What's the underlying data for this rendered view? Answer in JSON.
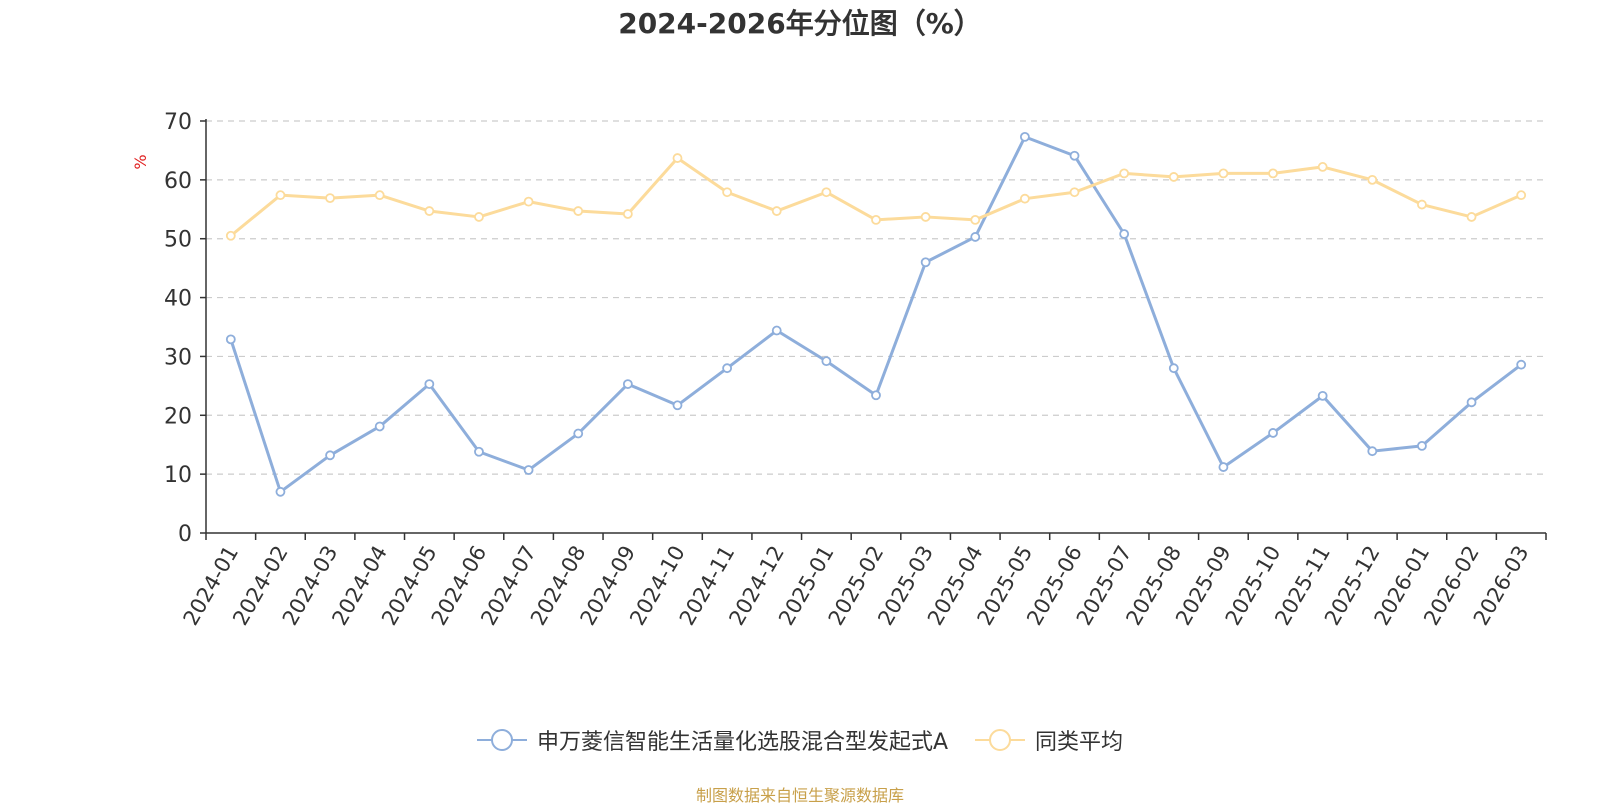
{
  "chart_data": {
    "type": "line",
    "title": "2024-2026年分位图（%）",
    "ylabel": "%",
    "ylim": [
      0,
      70
    ],
    "yticks": [
      "0",
      "10",
      "20",
      "30",
      "40",
      "50",
      "60",
      "70"
    ],
    "grid": true,
    "legend_position": "bottom",
    "categories": [
      "2024-01",
      "2024-02",
      "2024-03",
      "2024-04",
      "2024-05",
      "2024-06",
      "2024-07",
      "2024-08",
      "2024-09",
      "2024-10",
      "2024-11",
      "2024-12",
      "2025-01",
      "2025-02",
      "2025-03",
      "2025-04",
      "2025-05",
      "2025-06",
      "2025-07",
      "2025-08",
      "2025-09",
      "2025-10",
      "2025-11",
      "2025-12",
      "2026-01",
      "2026-02",
      "2026-03"
    ],
    "series": [
      {
        "name": "申万菱信智能生活量化选股混合型发起式A",
        "color": "#8eaedb",
        "values": [
          32.9,
          7.0,
          13.2,
          18.1,
          25.3,
          13.8,
          10.7,
          16.9,
          25.3,
          21.7,
          28.0,
          34.4,
          29.2,
          23.4,
          46.0,
          50.3,
          67.3,
          64.1,
          50.8,
          28.0,
          11.2,
          17.0,
          23.3,
          13.9,
          14.8,
          22.2,
          28.6
        ]
      },
      {
        "name": "同类平均",
        "color": "#fcdb9b",
        "values": [
          50.5,
          57.4,
          56.9,
          57.4,
          54.7,
          53.7,
          56.3,
          54.7,
          54.2,
          63.7,
          57.9,
          54.7,
          57.9,
          53.2,
          53.7,
          53.2,
          56.8,
          57.9,
          61.1,
          60.5,
          61.1,
          61.1,
          62.2,
          60.0,
          55.8,
          53.7,
          57.4
        ]
      }
    ]
  },
  "source_note": "制图数据来自恒生聚源数据库"
}
